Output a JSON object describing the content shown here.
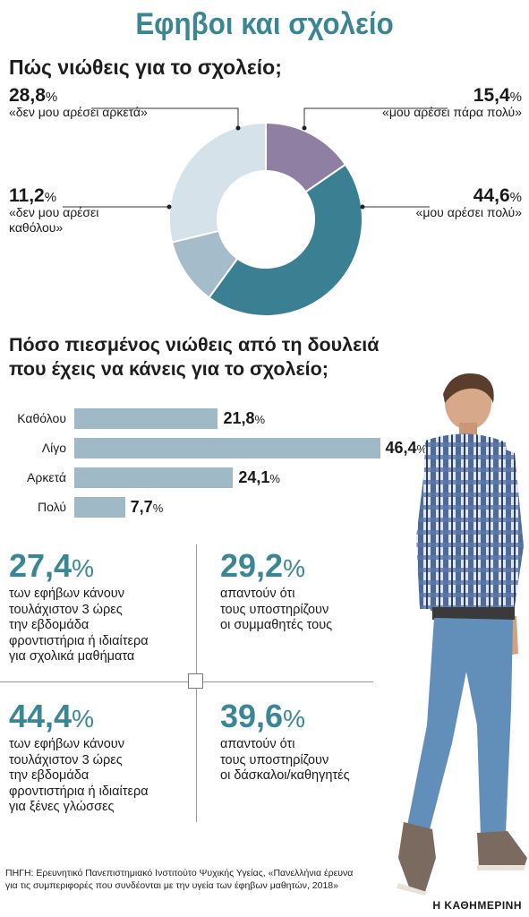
{
  "title": "Εφηβοι και σχολείο",
  "colors": {
    "accent": "#3a8694",
    "donut_purple": "#8f7fa2",
    "donut_teal": "#3b7f92",
    "donut_gray": "#a5bdcb",
    "donut_light": "#d5e2e9",
    "bar": "#9fb9c7"
  },
  "chart_data": [
    {
      "type": "pie",
      "title": "Πώς νιώθεις για το σχολείο;",
      "slices": [
        {
          "label": "«μου αρέσει πάρα πολύ»",
          "value": 15.4,
          "value_text": "15,4"
        },
        {
          "label": "«μου αρέσει πολύ»",
          "value": 44.6,
          "value_text": "44,6"
        },
        {
          "label": "«δεν μου αρέσει καθόλου»",
          "value": 11.2,
          "value_text": "11,2"
        },
        {
          "label": "«δεν μου αρέσει αρκετά»",
          "value": 28.8,
          "value_text": "28,8"
        }
      ],
      "label_lines": {
        "not_at_all": [
          "«δεν μου αρέσει",
          "καθόλου»"
        ]
      },
      "unit": "%"
    },
    {
      "type": "bar",
      "title_lines": [
        "Πόσο πιεσμένος νιώθεις από τη δουλειά",
        "που έχεις να κάνεις για το σχολείο;"
      ],
      "categories": [
        "Καθόλου",
        "Λίγο",
        "Αρκετά",
        "Πολύ"
      ],
      "values": [
        21.8,
        46.4,
        24.1,
        7.7
      ],
      "value_texts": [
        "21,8",
        "46,4",
        "24,1",
        "7,7"
      ],
      "unit": "%"
    }
  ],
  "stats": [
    {
      "value": "27,4",
      "lines": [
        "των εφήβων κάνουν",
        "τουλάχιστον 3 ώρες",
        "την εβδομάδα",
        "φροντιστήρια ή ιδιαίτερα",
        "για σχολικά μαθήματα"
      ]
    },
    {
      "value": "29,2",
      "lines": [
        "απαντούν ότι",
        "τους υποστηρίζουν",
        "οι συμμαθητές τους"
      ]
    },
    {
      "value": "44,4",
      "lines": [
        "των εφήβων κάνουν",
        "τουλάχιστον 3 ώρες",
        "την εβδομάδα",
        "φροντιστήρια ή ιδιαίτερα",
        "για ξένες γλώσσες"
      ]
    },
    {
      "value": "39,6",
      "lines": [
        "απαντούν ότι",
        "τους υποστηρίζουν",
        "οι δάσκαλοι/καθηγητές"
      ]
    }
  ],
  "percent_sign": "%",
  "source_lines": [
    "ΠΗΓΗ: Ερευνητικό Πανεπιστημιακό Ινστιτούτο Ψυχικής Υγείας, «Πανελλήνια έρευνα",
    "για τις συμπεριφορές που συνδέονται με την υγεία των έφηβων μαθητών, 2018»"
  ],
  "brand": "Η ΚΑΘΗΜΕΡΙΝΗ",
  "illustration": "teen-boy-walking-photo"
}
